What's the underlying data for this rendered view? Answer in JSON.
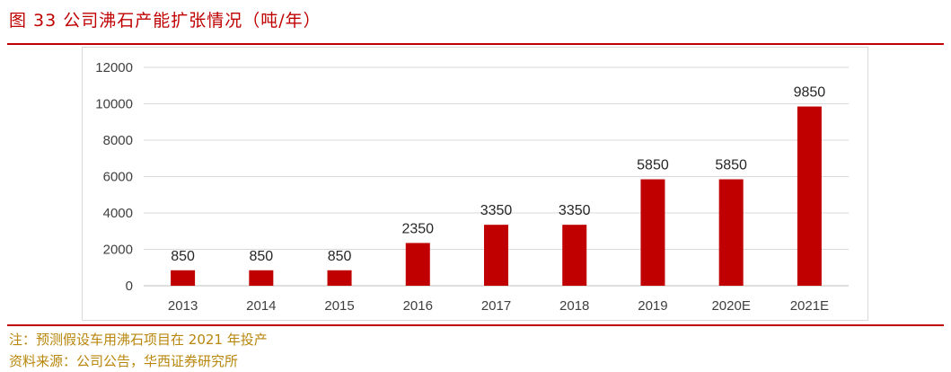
{
  "header": {
    "figure_title": "图 33   公司沸石产能扩张情况（吨/年）"
  },
  "notes": {
    "note": "注：预测假设车用沸石项目在 2021 年投产",
    "source": "资料来源：公司公告，华西证券研究所"
  },
  "colors": {
    "accent": "#c00000",
    "bar": "#c00000",
    "grid": "#d9d9d9",
    "note_text": "#b8860b"
  },
  "chart_data": {
    "type": "bar",
    "title": "公司沸石产能扩张情况（吨/年）",
    "xlabel": "",
    "ylabel": "",
    "categories": [
      "2013",
      "2014",
      "2015",
      "2016",
      "2017",
      "2018",
      "2019",
      "2020E",
      "2021E"
    ],
    "values": [
      850,
      850,
      850,
      2350,
      3350,
      3350,
      5850,
      5850,
      9850
    ],
    "data_labels": [
      "850",
      "850",
      "850",
      "2350",
      "3350",
      "3350",
      "5850",
      "5850",
      "9850"
    ],
    "ylim": [
      0,
      12000
    ],
    "yticks": [
      0,
      2000,
      4000,
      6000,
      8000,
      10000,
      12000
    ],
    "ytick_labels": [
      "0",
      "2000",
      "4000",
      "6000",
      "8000",
      "10000",
      "12000"
    ],
    "grid": true,
    "legend": "none"
  }
}
